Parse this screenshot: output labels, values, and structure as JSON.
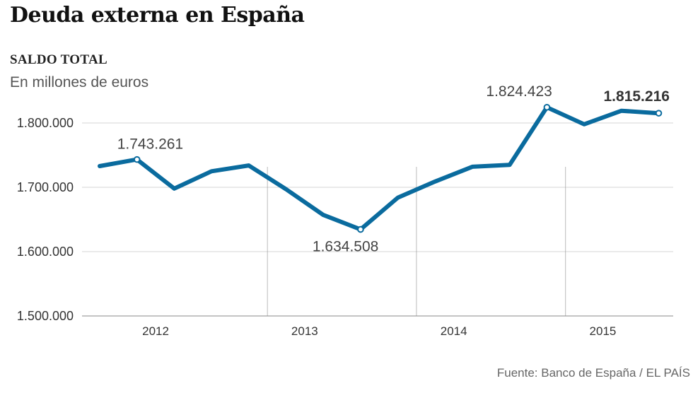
{
  "header": {
    "title": "Deuda externa en España",
    "subtitle": "SALDO TOTAL",
    "units": "En millones de euros"
  },
  "footer": {
    "source": "Fuente: Banco de España / EL PAÍS"
  },
  "colors": {
    "line": "#0a6b9e",
    "grid": "#d6d6d6",
    "axis": "#888888"
  },
  "chart_data": {
    "type": "line",
    "title": "Deuda externa en España",
    "subtitle": "SALDO TOTAL",
    "ylabel": "En millones de euros",
    "xlabel": "",
    "ylim": [
      1500000,
      1850000
    ],
    "y_ticks": [
      1500000,
      1600000,
      1700000,
      1800000
    ],
    "y_tick_labels": [
      "1.500.000",
      "1.600.000",
      "1.700.000",
      "1.800.000"
    ],
    "grid": true,
    "years": [
      "2012",
      "2013",
      "2014",
      "2015"
    ],
    "series": [
      {
        "name": "Saldo total",
        "x": [
          0,
          1,
          2,
          3,
          4,
          5,
          6,
          7,
          8,
          9,
          10,
          11,
          12,
          13,
          14,
          15
        ],
        "quarters": [
          "2011-T4",
          "2012-T1",
          "2012-T2",
          "2012-T3",
          "2012-T4",
          "2013-T1",
          "2013-T2",
          "2013-T3",
          "2013-T4",
          "2014-T1",
          "2014-T2",
          "2014-T3",
          "2014-T4",
          "2015-T1",
          "2015-T2",
          "2015-T3"
        ],
        "values": [
          1733000,
          1743261,
          1698000,
          1725000,
          1734000,
          1697000,
          1657000,
          1634508,
          1684000,
          1709000,
          1732000,
          1735000,
          1824423,
          1798000,
          1819000,
          1815216
        ]
      }
    ],
    "annotations": [
      {
        "index": 1,
        "label": "1.743.261",
        "bold": false
      },
      {
        "index": 7,
        "label": "1.634.508",
        "bold": false
      },
      {
        "index": 12,
        "label": "1.824.423",
        "bold": false
      },
      {
        "index": 15,
        "label": "1.815.216",
        "bold": true
      }
    ]
  }
}
